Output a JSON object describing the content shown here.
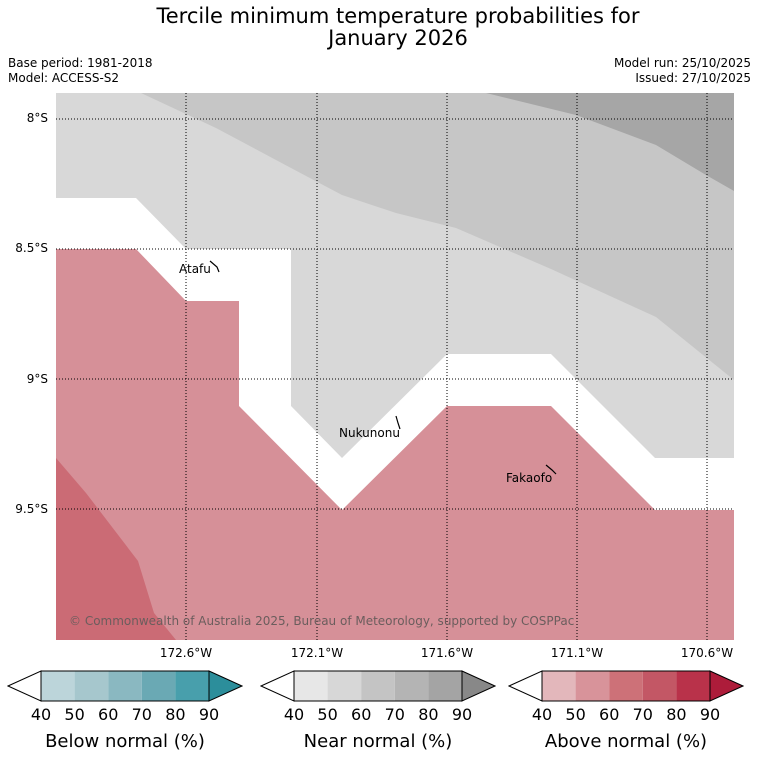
{
  "title": {
    "line1": "Tercile minimum temperature probabilities for",
    "line2": "January 2026"
  },
  "info": {
    "base_period": "Base period: 1981-2018",
    "model": "Model: ACCESS-S2",
    "model_run": "Model run: 25/10/2025",
    "issued": "Issued: 27/10/2025"
  },
  "map": {
    "latitude_labels": [
      "8°S",
      "8.5°S",
      "9°S",
      "9.5°S"
    ],
    "longitude_labels": [
      "172.6°W",
      "172.1°W",
      "171.6°W",
      "171.1°W",
      "170.6°W"
    ],
    "places": [
      "Atafu",
      "Nukunonu",
      "Fakaofo"
    ],
    "copyright": "© Commonwealth of Australia 2025, Bureau of Meteorology, supported by COSPPac",
    "colors": {
      "near_40": "#d8d8d8",
      "near_50": "#c6c6c6",
      "near_60": "#a6a6a6",
      "above_50": "#d69098",
      "above_60": "#cb6b75"
    }
  },
  "legend": {
    "ticks": [
      "40",
      "50",
      "60",
      "70",
      "80",
      "90"
    ],
    "below": {
      "title": "Below normal (%)",
      "colors": [
        "#ffffff",
        "#bcd5da",
        "#a6c7cd",
        "#8ab8c1",
        "#6aa9b4",
        "#489fac",
        "#2c8e9b"
      ]
    },
    "near": {
      "title": "Near normal (%)",
      "colors": [
        "#ffffff",
        "#e7e7e7",
        "#d7d7d7",
        "#c4c4c4",
        "#b4b4b4",
        "#a4a4a4",
        "#888888"
      ]
    },
    "above": {
      "title": "Above normal (%)",
      "colors": [
        "#ffffff",
        "#e3b7bb",
        "#d8939a",
        "#cd7178",
        "#c35765",
        "#b9324a",
        "#ad1c3a"
      ]
    }
  }
}
